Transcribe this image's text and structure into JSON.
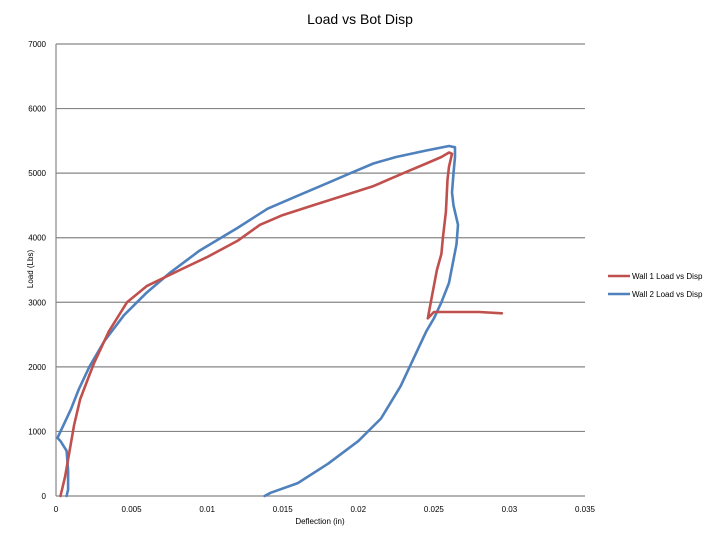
{
  "chart_data": {
    "type": "line",
    "title": "Load vs Bot Disp",
    "xlabel": "Deflection (in)",
    "ylabel": "Load (Lbs)",
    "xlim": [
      0,
      0.035
    ],
    "ylim": [
      0,
      7000
    ],
    "x_ticks": [
      0,
      0.005,
      0.01,
      0.015,
      0.02,
      0.025,
      0.03,
      0.035
    ],
    "x_tick_labels": [
      "0",
      "0.005",
      "0.01",
      "0.015",
      "0.02",
      "0.025",
      "0.03",
      "0.035"
    ],
    "y_ticks": [
      0,
      1000,
      2000,
      3000,
      4000,
      5000,
      6000,
      7000
    ],
    "y_tick_labels": [
      "0",
      "1000",
      "2000",
      "3000",
      "4000",
      "5000",
      "6000",
      "7000"
    ],
    "grid": "horizontal",
    "legend_position": "right",
    "series": [
      {
        "name": "Wall 1 Load vs Disp",
        "color": "#c0504d",
        "points": [
          [
            0.0003,
            0
          ],
          [
            0.0006,
            300
          ],
          [
            0.0009,
            700
          ],
          [
            0.0012,
            1100
          ],
          [
            0.0016,
            1500
          ],
          [
            0.0025,
            2050
          ],
          [
            0.0035,
            2550
          ],
          [
            0.0047,
            3000
          ],
          [
            0.006,
            3250
          ],
          [
            0.0082,
            3500
          ],
          [
            0.01,
            3700
          ],
          [
            0.012,
            3950
          ],
          [
            0.0135,
            4200
          ],
          [
            0.015,
            4350
          ],
          [
            0.017,
            4500
          ],
          [
            0.019,
            4650
          ],
          [
            0.021,
            4800
          ],
          [
            0.023,
            5000
          ],
          [
            0.0245,
            5150
          ],
          [
            0.0255,
            5250
          ],
          [
            0.026,
            5320
          ],
          [
            0.0262,
            5300
          ],
          [
            0.026,
            5100
          ],
          [
            0.0259,
            4900
          ],
          [
            0.0258,
            4400
          ],
          [
            0.0256,
            4000
          ],
          [
            0.0255,
            3750
          ],
          [
            0.0252,
            3500
          ],
          [
            0.0248,
            3000
          ],
          [
            0.0246,
            2750
          ],
          [
            0.025,
            2850
          ],
          [
            0.026,
            2850
          ],
          [
            0.028,
            2850
          ],
          [
            0.0295,
            2830
          ]
        ]
      },
      {
        "name": "Wall 2 Load vs Disp",
        "color": "#4f81bd",
        "points": [
          [
            0.0138,
            0
          ],
          [
            0.0142,
            50
          ],
          [
            0.016,
            200
          ],
          [
            0.018,
            500
          ],
          [
            0.02,
            850
          ],
          [
            0.0215,
            1200
          ],
          [
            0.0228,
            1700
          ],
          [
            0.0238,
            2200
          ],
          [
            0.0245,
            2550
          ],
          [
            0.025,
            2750
          ],
          [
            0.0255,
            3000
          ],
          [
            0.026,
            3300
          ],
          [
            0.0265,
            3900
          ],
          [
            0.0266,
            4200
          ],
          [
            0.0263,
            4500
          ],
          [
            0.0262,
            4700
          ],
          [
            0.0263,
            5000
          ],
          [
            0.0264,
            5250
          ],
          [
            0.0264,
            5400
          ],
          [
            0.026,
            5420
          ],
          [
            0.0245,
            5350
          ],
          [
            0.0225,
            5250
          ],
          [
            0.021,
            5150
          ],
          [
            0.0195,
            5000
          ],
          [
            0.018,
            4850
          ],
          [
            0.016,
            4650
          ],
          [
            0.014,
            4450
          ],
          [
            0.012,
            4150
          ],
          [
            0.0095,
            3800
          ],
          [
            0.0075,
            3450
          ],
          [
            0.006,
            3150
          ],
          [
            0.0045,
            2800
          ],
          [
            0.0032,
            2400
          ],
          [
            0.0022,
            2000
          ],
          [
            0.0015,
            1650
          ],
          [
            0.001,
            1350
          ],
          [
            0.0006,
            1150
          ],
          [
            0.0003,
            1000
          ],
          [
            0.0001,
            900
          ],
          [
            0.0003,
            850
          ],
          [
            0.0007,
            700
          ],
          [
            0.0008,
            400
          ],
          [
            0.0008,
            100
          ],
          [
            0.0007,
            0
          ]
        ]
      }
    ]
  }
}
